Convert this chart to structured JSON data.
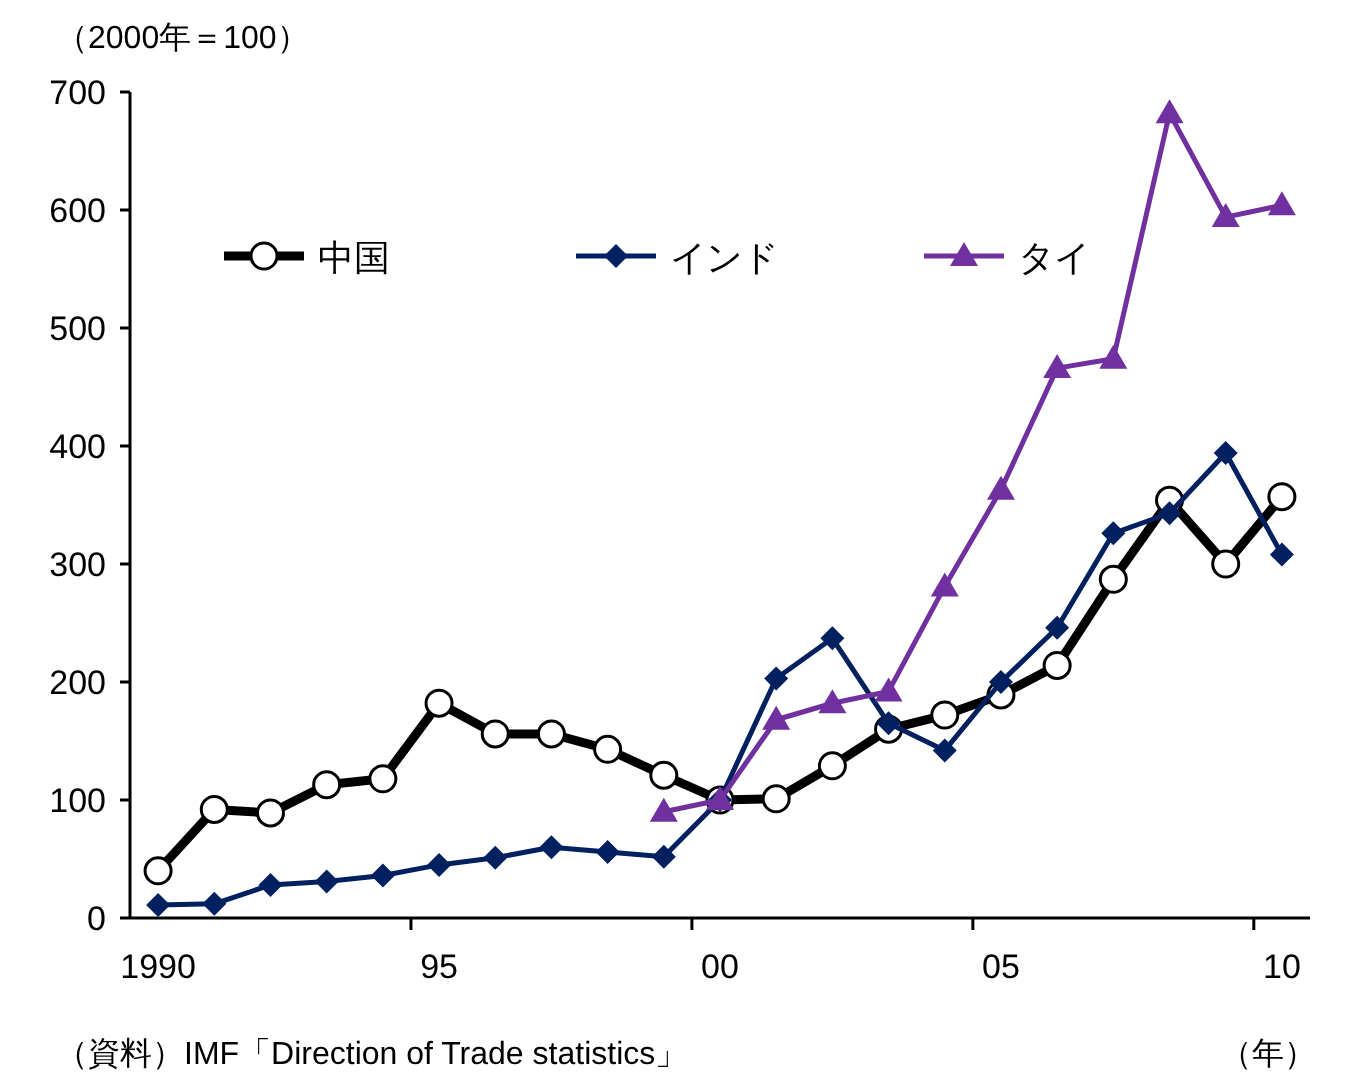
{
  "chart_data": {
    "type": "line",
    "ylabel": "（2000年＝100）",
    "xlabel": "（年）",
    "categories": [
      "1990",
      null,
      null,
      null,
      null,
      "95",
      null,
      null,
      null,
      null,
      "00",
      null,
      null,
      null,
      null,
      "05",
      null,
      null,
      null,
      null,
      "10"
    ],
    "series": [
      {
        "name": "中国",
        "color": "#000000",
        "marker": "circle",
        "values": [
          40,
          92,
          89,
          113,
          118,
          182,
          156,
          156,
          143,
          121,
          100,
          101,
          129,
          160,
          172,
          189,
          214,
          287,
          354,
          300,
          357
        ]
      },
      {
        "name": "インド",
        "color": "#002060",
        "marker": "diamond",
        "values": [
          11,
          12,
          28,
          31,
          36,
          45,
          51,
          60,
          56,
          52,
          100,
          203,
          237,
          165,
          142,
          200,
          246,
          326,
          343,
          394,
          308
        ]
      },
      {
        "name": "タイ",
        "color": "#7030a0",
        "marker": "triangle",
        "values": [
          null,
          null,
          null,
          null,
          null,
          null,
          null,
          null,
          null,
          90,
          100,
          168,
          182,
          192,
          281,
          363,
          466,
          474,
          682,
          594,
          604
        ]
      }
    ],
    "ylim": [
      0,
      700
    ],
    "yticks": [
      0,
      100,
      200,
      300,
      400,
      500,
      600,
      700
    ],
    "legend": "top left",
    "grid": false,
    "annotations": [
      "（資料）IMF「Direction of Trade statistics」"
    ]
  }
}
